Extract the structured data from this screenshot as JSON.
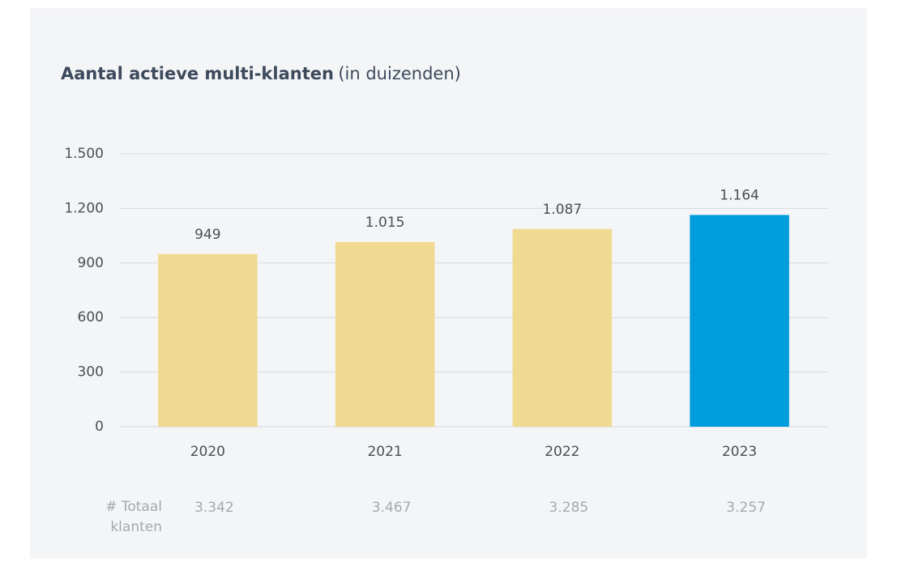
{
  "chart_data": {
    "type": "bar",
    "title": "Aantal actieve multi-klanten",
    "subtitle": "(in duizenden)",
    "categories": [
      "2020",
      "2021",
      "2022",
      "2023"
    ],
    "values": [
      949,
      1015,
      1087,
      1164
    ],
    "value_labels": [
      "949",
      "1.015",
      "1.087",
      "1.164"
    ],
    "colors": [
      "#f0da91",
      "#f0da91",
      "#f0da91",
      "#009ddc"
    ],
    "ylim": [
      0,
      1500
    ],
    "yticks": [
      0,
      300,
      600,
      900,
      {
        "value": 1200,
        "label": "1.200"
      },
      {
        "value": 1500,
        "label": "1.500"
      }
    ],
    "grid": true,
    "footer": {
      "label": "# Totaal klanten",
      "values": [
        3342,
        3467,
        3285,
        3257
      ],
      "value_labels": [
        "3.342",
        "3.467",
        "3.285",
        "3.257"
      ]
    }
  }
}
